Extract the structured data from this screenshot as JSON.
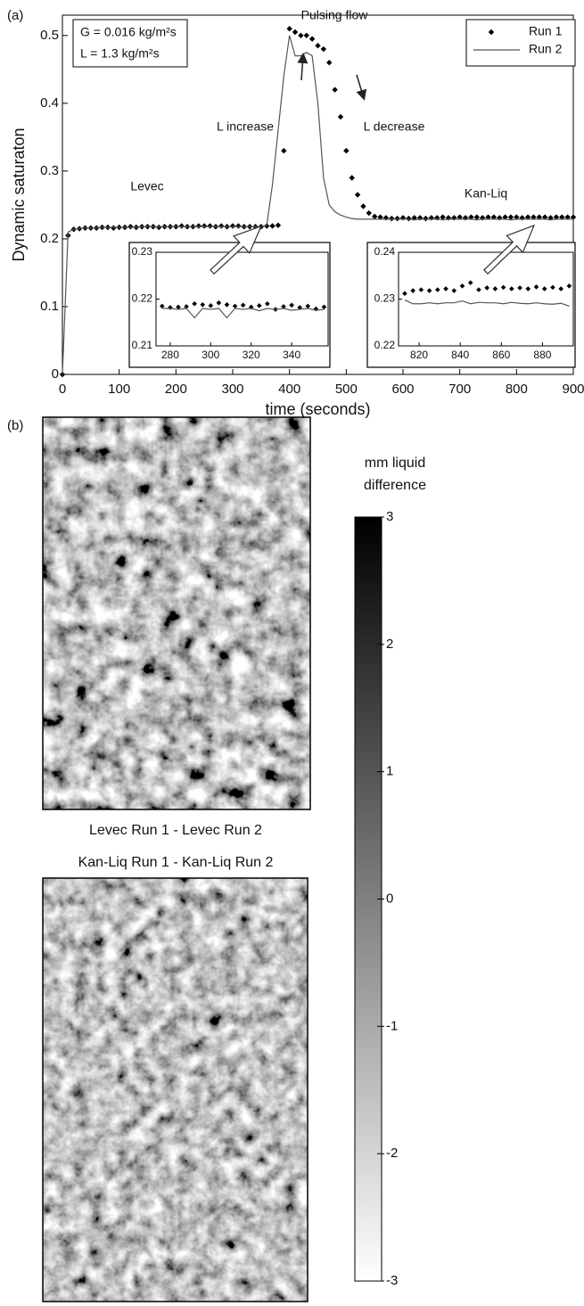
{
  "panel_labels": [
    "(a)",
    "(b)"
  ],
  "chart_data": [
    {
      "type": "line",
      "xlabel": "time (seconds)",
      "ylabel": "Dynamic saturaton",
      "x": [
        0,
        10,
        20,
        30,
        40,
        50,
        60,
        70,
        80,
        90,
        100,
        110,
        120,
        130,
        140,
        150,
        160,
        170,
        180,
        190,
        200,
        210,
        220,
        230,
        240,
        250,
        260,
        270,
        280,
        290,
        300,
        310,
        320,
        330,
        340,
        350,
        360,
        370,
        380,
        390,
        400,
        410,
        420,
        430,
        440,
        450,
        460,
        470,
        480,
        490,
        500,
        510,
        520,
        530,
        540,
        550,
        560,
        570,
        580,
        590,
        600,
        610,
        620,
        630,
        640,
        650,
        660,
        670,
        680,
        690,
        700,
        710,
        720,
        730,
        740,
        750,
        760,
        770,
        780,
        790,
        800,
        810,
        820,
        830,
        840,
        850,
        860,
        870,
        880,
        890,
        900
      ],
      "xlim": [
        0,
        900
      ],
      "ylim": [
        0,
        0.53
      ],
      "xticks": [
        0,
        100,
        200,
        300,
        400,
        500,
        600,
        700,
        800,
        900
      ],
      "yticks": [
        0,
        0.1,
        0.2,
        0.3,
        0.4,
        0.5
      ],
      "legend": "upper right",
      "info_box": [
        "G = 0.016 kg/m²s",
        "L = 1.3 kg/m²s"
      ],
      "annotations": [
        "Pulsing flow",
        "L increase",
        "L decrease",
        "Levec",
        "Kan-Liq"
      ],
      "series": [
        {
          "name": "Run 1",
          "color": "#000000",
          "style": "markers",
          "values": [
            0,
            0.205,
            0.214,
            0.215,
            0.216,
            0.216,
            0.216,
            0.217,
            0.217,
            0.216,
            0.217,
            0.217,
            0.218,
            0.217,
            0.218,
            0.218,
            0.218,
            0.217,
            0.218,
            0.218,
            0.218,
            0.219,
            0.218,
            0.218,
            0.219,
            0.219,
            0.219,
            0.218,
            0.219,
            0.218,
            0.219,
            0.219,
            0.218,
            0.218,
            0.218,
            0.218,
            0.219,
            0.219,
            0.22,
            0.33,
            0.51,
            0.505,
            0.5,
            0.5,
            0.495,
            0.485,
            0.48,
            0.46,
            0.42,
            0.38,
            0.33,
            0.29,
            0.265,
            0.248,
            0.238,
            0.233,
            0.232,
            0.231,
            0.23,
            0.23,
            0.231,
            0.23,
            0.231,
            0.231,
            0.23,
            0.231,
            0.231,
            0.232,
            0.231,
            0.231,
            0.232,
            0.231,
            0.232,
            0.232,
            0.231,
            0.232,
            0.232,
            0.231,
            0.232,
            0.232,
            0.232,
            0.231,
            0.232,
            0.232,
            0.232,
            0.232,
            0.231,
            0.232,
            0.232,
            0.232,
            0.232
          ]
        },
        {
          "name": "Run 2",
          "color": "#555555",
          "style": "line",
          "values": [
            0,
            0.21,
            0.214,
            0.215,
            0.216,
            0.216,
            0.216,
            0.217,
            0.217,
            0.217,
            0.217,
            0.217,
            0.217,
            0.217,
            0.218,
            0.218,
            0.218,
            0.218,
            0.218,
            0.218,
            0.218,
            0.218,
            0.218,
            0.218,
            0.218,
            0.218,
            0.218,
            0.218,
            0.218,
            0.218,
            0.218,
            0.218,
            0.218,
            0.218,
            0.218,
            0.218,
            0.22,
            0.28,
            0.36,
            0.44,
            0.5,
            0.47,
            0.47,
            0.475,
            0.47,
            0.4,
            0.29,
            0.25,
            0.24,
            0.235,
            0.232,
            0.23,
            0.229,
            0.229,
            0.229,
            0.229,
            0.229,
            0.229,
            0.229,
            0.229,
            0.229,
            0.229,
            0.228,
            0.229,
            0.229,
            0.229,
            0.229,
            0.228,
            0.229,
            0.229,
            0.229,
            0.229,
            0.229,
            0.228,
            0.229,
            0.229,
            0.229,
            0.229,
            0.229,
            0.228,
            0.229,
            0.229,
            0.229,
            0.229,
            0.229,
            0.229,
            0.228,
            0.229,
            0.229,
            0.229,
            0.229
          ]
        }
      ]
    },
    {
      "type": "line",
      "x": [
        276,
        280,
        284,
        288,
        292,
        296,
        300,
        304,
        308,
        312,
        316,
        320,
        324,
        328,
        332,
        336,
        340,
        344,
        348,
        352,
        356
      ],
      "xlim": [
        273,
        358
      ],
      "ylim": [
        0.21,
        0.23
      ],
      "xticks": [
        280,
        300,
        320,
        340
      ],
      "yticks": [
        0.21,
        0.22,
        0.23
      ],
      "series": [
        {
          "color": "#000000",
          "style": "markers",
          "values": [
            0.2185,
            0.2182,
            0.2183,
            0.2184,
            0.219,
            0.2188,
            0.2186,
            0.2192,
            0.2188,
            0.2185,
            0.2187,
            0.2183,
            0.2186,
            0.219,
            0.2178,
            0.2184,
            0.2187,
            0.2182,
            0.2185,
            0.2179,
            0.2183
          ]
        },
        {
          "color": "#555555",
          "style": "line",
          "values": [
            0.218,
            0.218,
            0.2178,
            0.218,
            0.216,
            0.218,
            0.2178,
            0.218,
            0.216,
            0.218,
            0.2178,
            0.218,
            0.2175,
            0.218,
            0.2178,
            0.218,
            0.2176,
            0.2178,
            0.218,
            0.2176,
            0.2178
          ]
        }
      ]
    },
    {
      "type": "line",
      "x": [
        813,
        817,
        821,
        825,
        829,
        833,
        837,
        841,
        845,
        849,
        853,
        857,
        861,
        865,
        869,
        873,
        877,
        881,
        885,
        889,
        893
      ],
      "xlim": [
        810,
        895
      ],
      "ylim": [
        0.22,
        0.24
      ],
      "xticks": [
        820,
        840,
        860,
        880
      ],
      "yticks": [
        0.22,
        0.23,
        0.24
      ],
      "series": [
        {
          "color": "#000000",
          "style": "markers",
          "values": [
            0.2312,
            0.2318,
            0.232,
            0.2318,
            0.232,
            0.2322,
            0.2318,
            0.2328,
            0.2335,
            0.232,
            0.2324,
            0.2322,
            0.2325,
            0.2322,
            0.2324,
            0.2322,
            0.2326,
            0.2322,
            0.2325,
            0.2322,
            0.2328
          ]
        },
        {
          "color": "#555555",
          "style": "line",
          "values": [
            0.2298,
            0.229,
            0.229,
            0.2292,
            0.229,
            0.2292,
            0.2292,
            0.2296,
            0.229,
            0.2293,
            0.2292,
            0.2292,
            0.229,
            0.2293,
            0.2291,
            0.229,
            0.2292,
            0.229,
            0.2289,
            0.2291,
            0.2285
          ]
        }
      ]
    },
    {
      "type": "colorbar",
      "title": [
        "mm liquid",
        "difference"
      ],
      "ylim": [
        -3,
        3
      ],
      "yticks": [
        -3,
        -2,
        -1,
        0,
        1,
        2,
        3
      ],
      "colors": [
        "#ffffff",
        "#000000"
      ]
    }
  ],
  "images": {
    "captions": [
      "Levec Run 1 - Levec Run 2",
      "Kan-Liq Run 1 - Kan-Liq Run 2"
    ]
  }
}
